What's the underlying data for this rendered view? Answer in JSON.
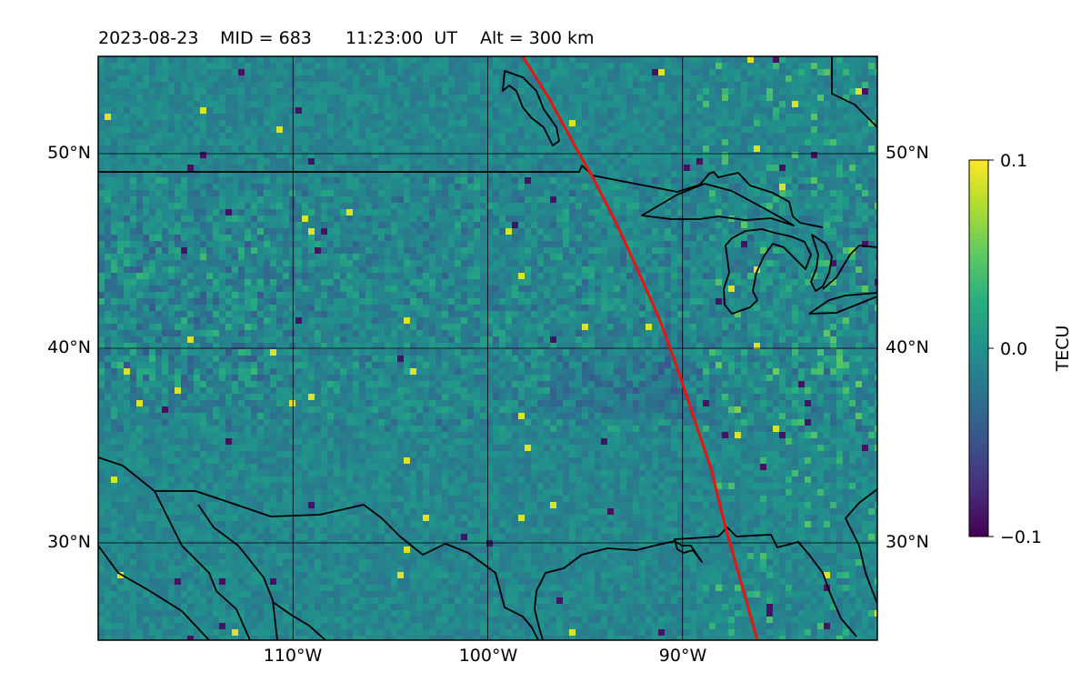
{
  "title": {
    "date": "2023-08-23",
    "mid": "MID = 683",
    "time": "11:23:00  UT",
    "alt": "Alt = 300 km"
  },
  "map": {
    "lon_range": [
      -120,
      -80
    ],
    "lat_range": [
      25,
      55
    ],
    "grid_lon": [
      -110,
      -100,
      -90
    ],
    "grid_lat": [
      30,
      40,
      50
    ],
    "lat_ticks": [
      "30°N",
      "40°N",
      "50°N"
    ],
    "lon_ticks": [
      "110°W",
      "100°W",
      "90°W"
    ],
    "colormap": "viridis",
    "track_color": "#e8150f",
    "coast_color": "#000000",
    "grid_color": "#000000"
  },
  "colorbar": {
    "label": "TECU",
    "min": -0.1,
    "max": 0.1,
    "ticks": [
      "0.1",
      "0.0",
      "−0.1"
    ]
  }
}
